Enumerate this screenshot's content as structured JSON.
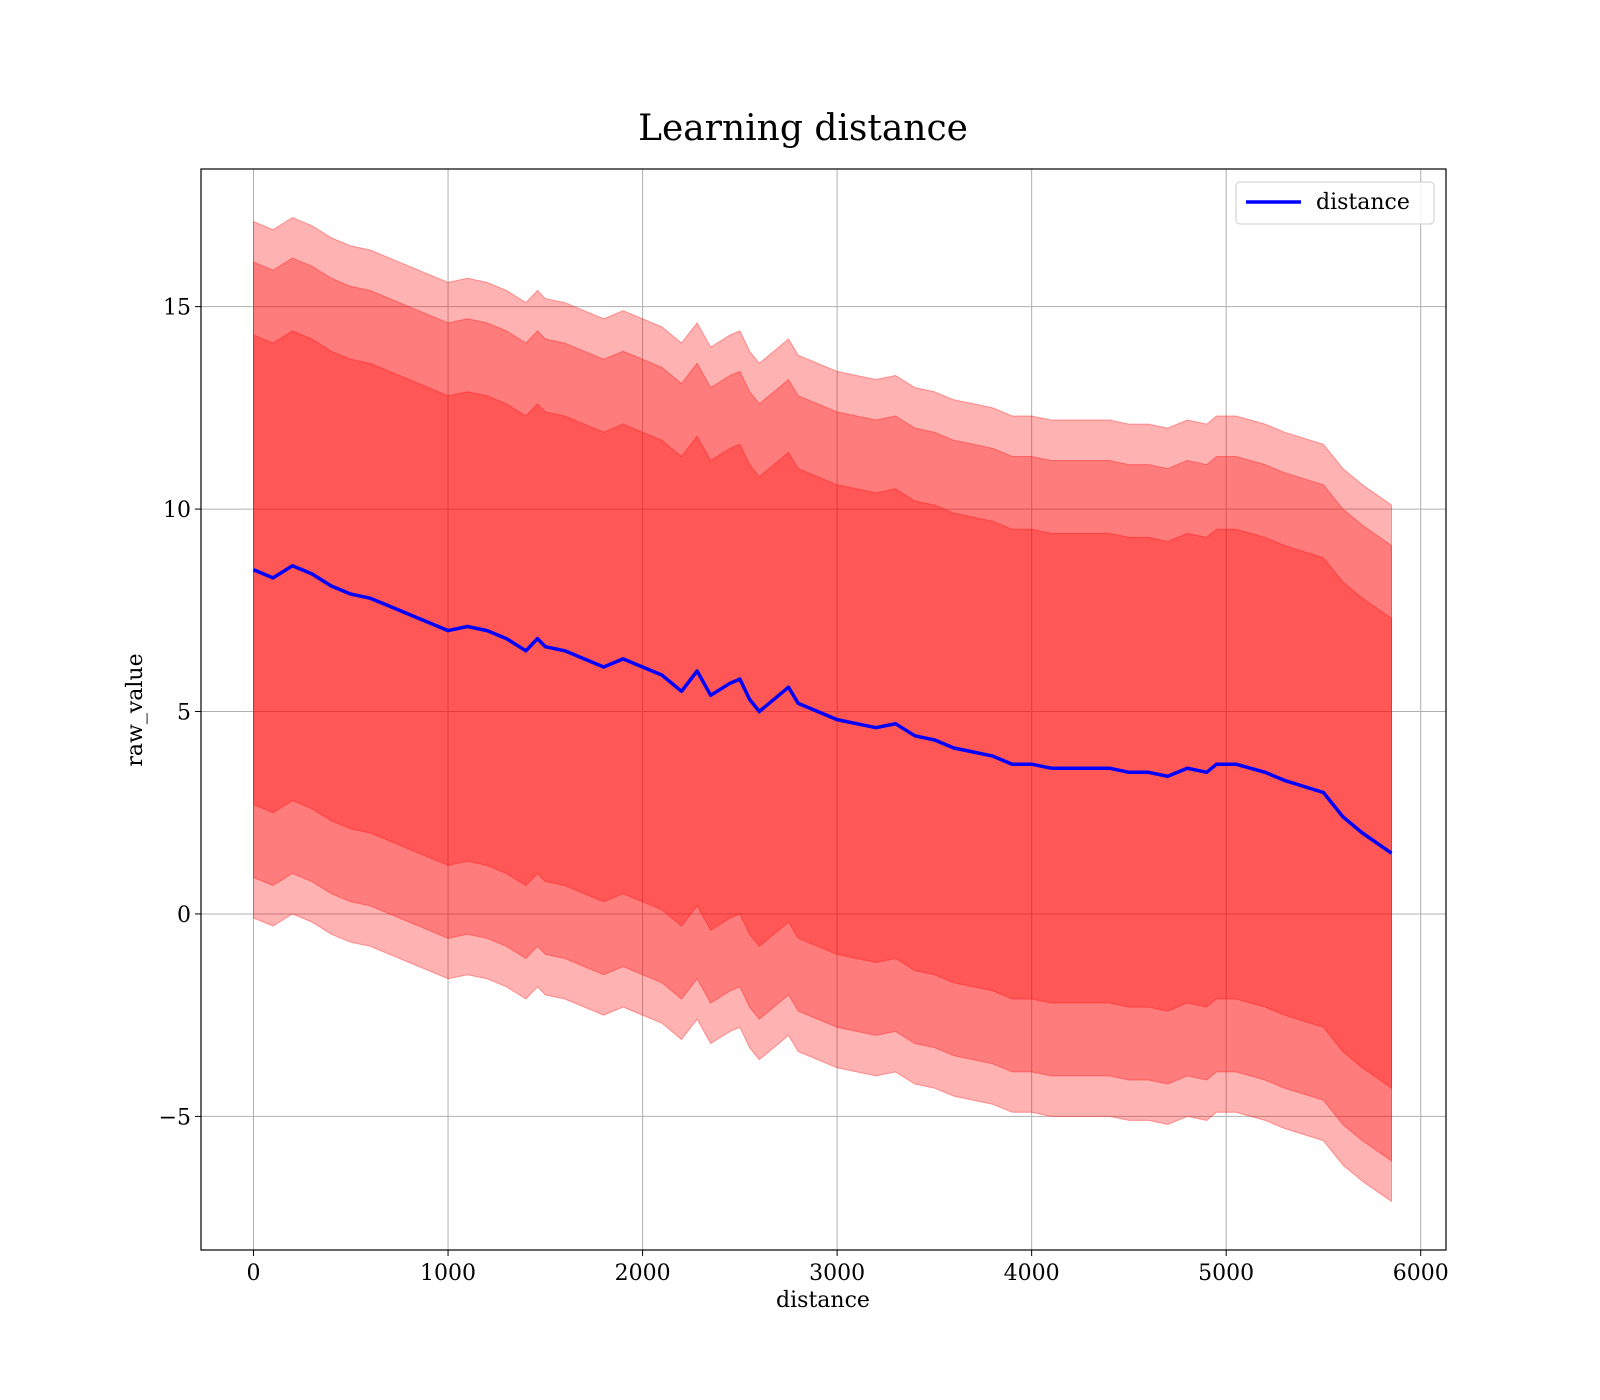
{
  "chart_data": {
    "type": "line",
    "title": "Learning distance",
    "xlabel": "distance",
    "ylabel": "raw_value",
    "xlim": [
      -270,
      6130
    ],
    "ylim": [
      -8.3,
      18.4
    ],
    "xticks": [
      0,
      1000,
      2000,
      3000,
      4000,
      5000,
      6000
    ],
    "xtick_labels": [
      "0",
      "1000",
      "2000",
      "3000",
      "4000",
      "5000",
      "6000"
    ],
    "yticks": [
      -5,
      0,
      5,
      10,
      15
    ],
    "ytick_labels": [
      "−5",
      "0",
      "5",
      "10",
      "15"
    ],
    "grid": true,
    "legend": {
      "position": "top-right",
      "entries": [
        "distance"
      ]
    },
    "colors": {
      "line": "#0000ff",
      "band": "#ff0000",
      "grid": "#b0b0b0"
    },
    "x": [
      0,
      100,
      200,
      300,
      400,
      500,
      600,
      700,
      800,
      900,
      1000,
      1100,
      1200,
      1300,
      1400,
      1460,
      1500,
      1600,
      1700,
      1800,
      1900,
      2000,
      2100,
      2200,
      2280,
      2350,
      2450,
      2500,
      2550,
      2600,
      2700,
      2750,
      2800,
      2900,
      3000,
      3100,
      3200,
      3300,
      3400,
      3500,
      3600,
      3700,
      3800,
      3900,
      4000,
      4100,
      4200,
      4300,
      4400,
      4500,
      4600,
      4700,
      4800,
      4900,
      4950,
      5000,
      5050,
      5200,
      5300,
      5500,
      5600,
      5700,
      5850
    ],
    "series": [
      {
        "name": "distance",
        "values": [
          8.5,
          8.3,
          8.6,
          8.4,
          8.1,
          7.9,
          7.8,
          7.6,
          7.4,
          7.2,
          7.0,
          7.1,
          7.0,
          6.8,
          6.5,
          6.8,
          6.6,
          6.5,
          6.3,
          6.1,
          6.3,
          6.1,
          5.9,
          5.5,
          6.0,
          5.4,
          5.7,
          5.8,
          5.3,
          5.0,
          5.4,
          5.6,
          5.2,
          5.0,
          4.8,
          4.7,
          4.6,
          4.7,
          4.4,
          4.3,
          4.1,
          4.0,
          3.9,
          3.7,
          3.7,
          3.6,
          3.6,
          3.6,
          3.6,
          3.5,
          3.5,
          3.4,
          3.6,
          3.5,
          3.7,
          3.7,
          3.7,
          3.5,
          3.3,
          3.0,
          2.4,
          2.0,
          1.5
        ],
        "bands": [
          {
            "k": 1,
            "halfwidth": [
              5.8,
              5.8,
              5.8,
              5.8,
              5.8,
              5.8,
              5.8,
              5.8,
              5.8,
              5.8,
              5.8,
              5.8,
              5.8,
              5.8,
              5.8,
              5.8,
              5.8,
              5.8,
              5.8,
              5.8,
              5.8,
              5.8,
              5.8,
              5.8,
              5.8,
              5.8,
              5.8,
              5.8,
              5.8,
              5.8,
              5.8,
              5.8,
              5.8,
              5.8,
              5.8,
              5.8,
              5.8,
              5.8,
              5.8,
              5.8,
              5.8,
              5.8,
              5.8,
              5.8,
              5.8,
              5.8,
              5.8,
              5.8,
              5.8,
              5.8,
              5.8,
              5.8,
              5.8,
              5.8,
              5.8,
              5.8,
              5.8,
              5.8,
              5.8,
              5.8,
              5.8,
              5.8,
              5.8
            ]
          },
          {
            "k": 2,
            "halfwidth": [
              7.6,
              7.6,
              7.6,
              7.6,
              7.6,
              7.6,
              7.6,
              7.6,
              7.6,
              7.6,
              7.6,
              7.6,
              7.6,
              7.6,
              7.6,
              7.6,
              7.6,
              7.6,
              7.6,
              7.6,
              7.6,
              7.6,
              7.6,
              7.6,
              7.6,
              7.6,
              7.6,
              7.6,
              7.6,
              7.6,
              7.6,
              7.6,
              7.6,
              7.6,
              7.6,
              7.6,
              7.6,
              7.6,
              7.6,
              7.6,
              7.6,
              7.6,
              7.6,
              7.6,
              7.6,
              7.6,
              7.6,
              7.6,
              7.6,
              7.6,
              7.6,
              7.6,
              7.6,
              7.6,
              7.6,
              7.6,
              7.6,
              7.6,
              7.6,
              7.6,
              7.6,
              7.6,
              7.6
            ]
          },
          {
            "k": 3,
            "halfwidth": [
              8.6,
              8.6,
              8.6,
              8.6,
              8.6,
              8.6,
              8.6,
              8.6,
              8.6,
              8.6,
              8.6,
              8.6,
              8.6,
              8.6,
              8.6,
              8.6,
              8.6,
              8.6,
              8.6,
              8.6,
              8.6,
              8.6,
              8.6,
              8.6,
              8.6,
              8.6,
              8.6,
              8.6,
              8.6,
              8.6,
              8.6,
              8.6,
              8.6,
              8.6,
              8.6,
              8.6,
              8.6,
              8.6,
              8.6,
              8.6,
              8.6,
              8.6,
              8.6,
              8.6,
              8.6,
              8.6,
              8.6,
              8.6,
              8.6,
              8.6,
              8.6,
              8.6,
              8.6,
              8.6,
              8.6,
              8.6,
              8.6,
              8.6,
              8.6,
              8.6,
              8.6,
              8.6,
              8.6
            ]
          }
        ]
      }
    ]
  }
}
